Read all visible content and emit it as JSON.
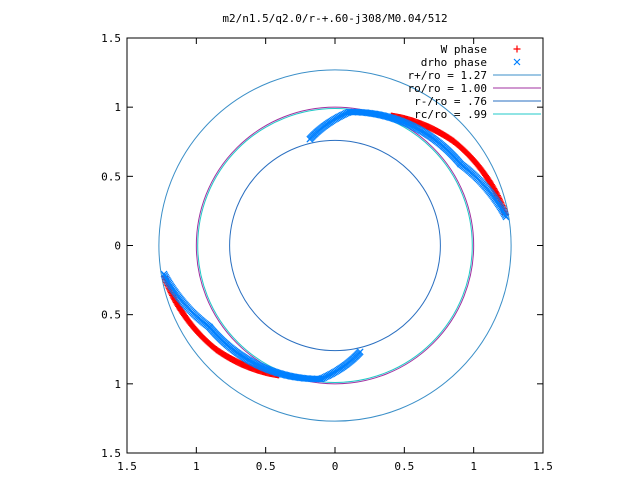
{
  "chart_data": {
    "type": "scatter",
    "title": "m2/n1.5/q2.0/r-+.60-j308/M0.04/512",
    "xlabel": "",
    "ylabel": "",
    "xlim": [
      -1.5,
      1.5
    ],
    "ylim": [
      -1.5,
      1.5
    ],
    "xticks": [
      {
        "value": -1.5,
        "label": "1.5"
      },
      {
        "value": -1.0,
        "label": "1"
      },
      {
        "value": -0.5,
        "label": "0.5"
      },
      {
        "value": 0.0,
        "label": "0"
      },
      {
        "value": 0.5,
        "label": "0.5"
      },
      {
        "value": 1.0,
        "label": "1"
      },
      {
        "value": 1.5,
        "label": "1.5"
      }
    ],
    "yticks": [
      {
        "value": 1.5,
        "label": "1.5"
      },
      {
        "value": 1.0,
        "label": "1"
      },
      {
        "value": 0.5,
        "label": "0.5"
      },
      {
        "value": 0.0,
        "label": "0"
      },
      {
        "value": -0.5,
        "label": "0.5"
      },
      {
        "value": -1.0,
        "label": "1"
      },
      {
        "value": -1.5,
        "label": "1.5"
      }
    ],
    "grid": false,
    "legend_position": "top-right",
    "series": [
      {
        "name": "W phase",
        "kind": "points",
        "marker": "+",
        "color": "#ff0000",
        "segments": [
          {
            "r": [
              1.25,
              1.14
            ],
            "theta_deg": [
              190.3,
              221.3
            ],
            "count": 60
          },
          {
            "r": [
              1.14,
              1.02
            ],
            "theta_deg": [
              221.3,
              246.5
            ],
            "count": 60
          },
          {
            "r": [
              1.25,
              1.14
            ],
            "theta_deg": [
              10.3,
              41.3
            ],
            "count": 60
          },
          {
            "r": [
              1.14,
              1.02
            ],
            "theta_deg": [
              41.3,
              66.5
            ],
            "count": 60
          }
        ]
      },
      {
        "name": "drho phase",
        "kind": "points",
        "marker": "x",
        "color": "#0080ff",
        "segments": [
          {
            "r": [
              0.79,
              0.97
            ],
            "theta_deg": [
              103.3,
              84.0
            ],
            "count": 35
          },
          {
            "r": [
              0.97,
              1.08
            ],
            "theta_deg": [
              84.0,
              33.0
            ],
            "count": 95
          },
          {
            "r": [
              1.08,
              1.25
            ],
            "theta_deg": [
              33.0,
              9.5
            ],
            "count": 45
          },
          {
            "r": [
              0.79,
              0.97
            ],
            "theta_deg": [
              283.3,
              264.0
            ],
            "count": 35
          },
          {
            "r": [
              0.97,
              1.08
            ],
            "theta_deg": [
              264.0,
              213.0
            ],
            "count": 95
          },
          {
            "r": [
              1.08,
              1.25
            ],
            "theta_deg": [
              213.0,
              189.5
            ],
            "count": 45
          }
        ]
      },
      {
        "name": "r+/ro = 1.27",
        "kind": "circle",
        "radius": 1.27,
        "color": "#3b8fc8"
      },
      {
        "name": "ro/ro = 1.00",
        "kind": "circle",
        "radius": 1.0,
        "color": "#a030a0"
      },
      {
        "name": "r-/ro = .76",
        "kind": "circle",
        "radius": 0.76,
        "color": "#2a6fc0"
      },
      {
        "name": "rc/ro = .99",
        "kind": "circle",
        "radius": 0.99,
        "color": "#20c8c8"
      }
    ]
  }
}
